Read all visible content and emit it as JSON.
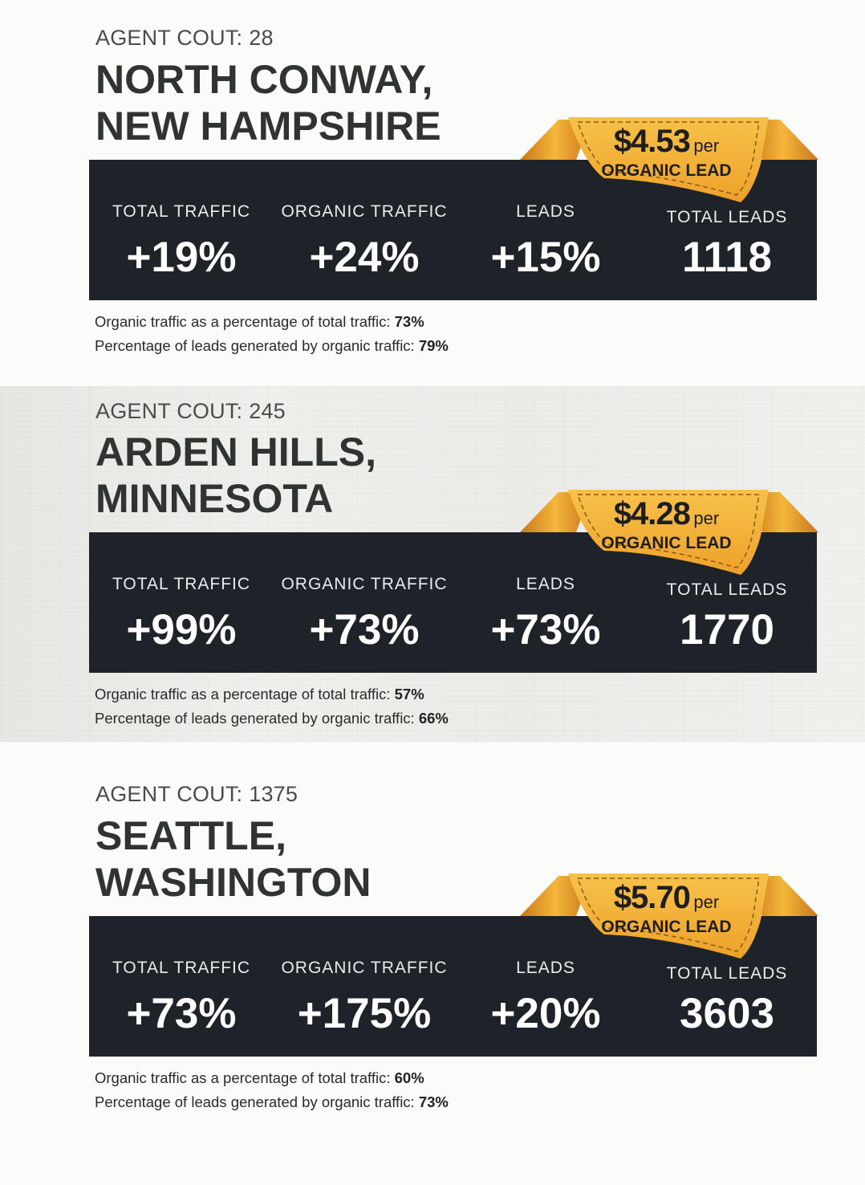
{
  "labels": {
    "agent_prefix": "AGENT COUT:",
    "total_traffic": "TOTAL TRAFFIC",
    "organic_traffic": "ORGANIC TRAFFIC",
    "leads": "LEADS",
    "total_leads": "TOTAL LEADS",
    "per": "per",
    "organic_lead": "ORGANIC LEAD",
    "note_organic_share": "Organic traffic as a percentage of total traffic:",
    "note_leads_share": "Percentage of leads generated by organic traffic:"
  },
  "colors": {
    "panel_bg": "#1d2329",
    "ribbon_gold": "#f2a92d",
    "ribbon_dark": "#c8751a",
    "title_text": "#2f3433"
  },
  "locations": [
    {
      "agent_count": "28",
      "title_line1": "NORTH CONWAY,",
      "title_line2": "NEW HAMPSHIRE",
      "cost_per_lead": "$4.53",
      "total_traffic": "+19%",
      "organic_traffic": "+24%",
      "leads": "+15%",
      "total_leads": "1118",
      "organic_share": "73%",
      "leads_share": "79%"
    },
    {
      "agent_count": "245",
      "title_line1": "ARDEN HILLS,",
      "title_line2": "MINNESOTA",
      "cost_per_lead": "$4.28",
      "total_traffic": "+99%",
      "organic_traffic": "+73%",
      "leads": "+73%",
      "total_leads": "1770",
      "organic_share": "57%",
      "leads_share": "66%"
    },
    {
      "agent_count": "1375",
      "title_line1": "SEATTLE,",
      "title_line2": "WASHINGTON",
      "cost_per_lead": "$5.70",
      "total_traffic": "+73%",
      "organic_traffic": "+175%",
      "leads": "+20%",
      "total_leads": "3603",
      "organic_share": "60%",
      "leads_share": "73%"
    }
  ]
}
